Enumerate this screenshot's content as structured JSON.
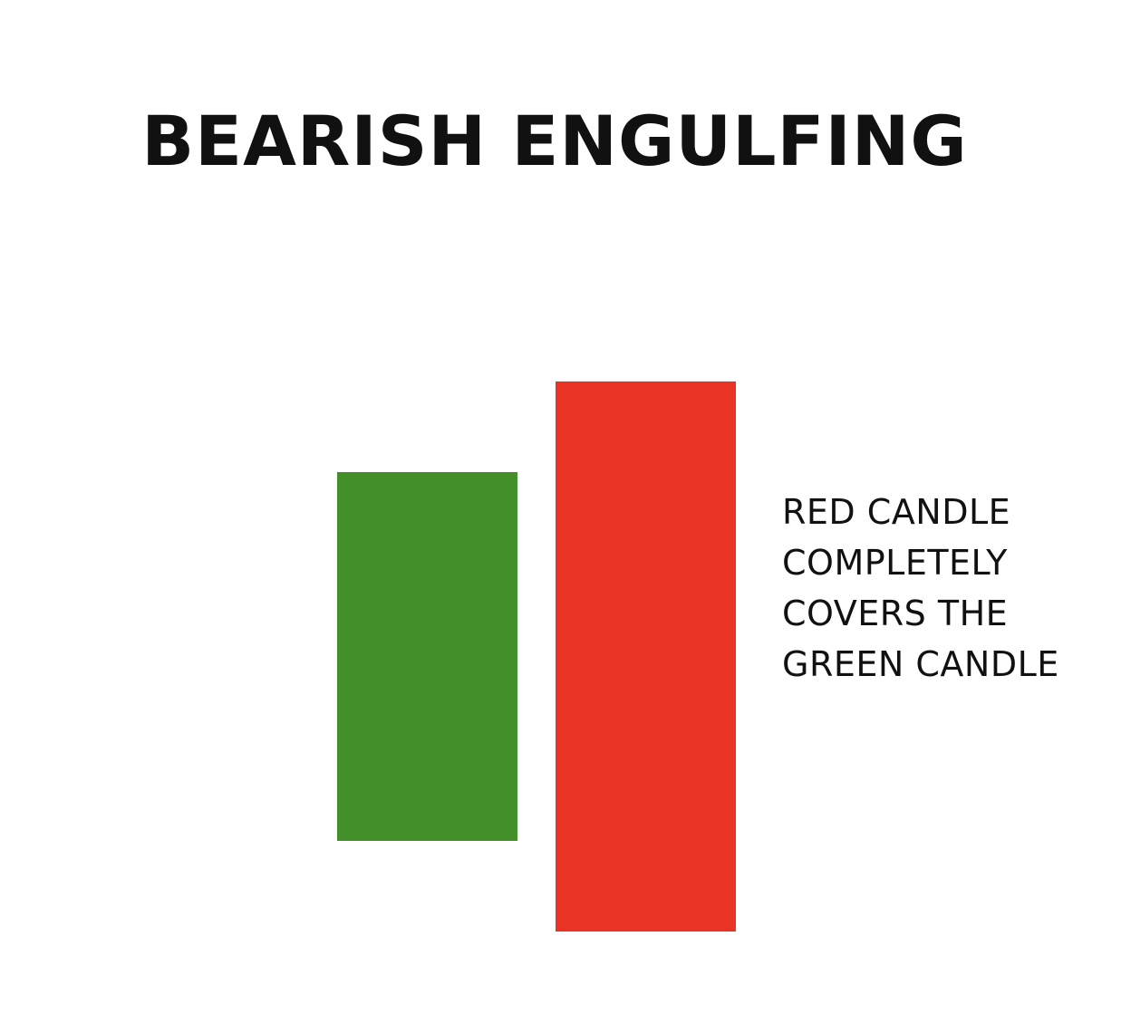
{
  "title": "BEARISH ENGULFING",
  "candles": {
    "first": {
      "label": "green candle",
      "color": "#43902A"
    },
    "second": {
      "label": "red candle",
      "color": "#E83325"
    }
  },
  "annotation": {
    "lines": [
      "RED CANDLE",
      "COMPLETELY",
      "COVERS THE",
      "GREEN CANDLE"
    ]
  }
}
